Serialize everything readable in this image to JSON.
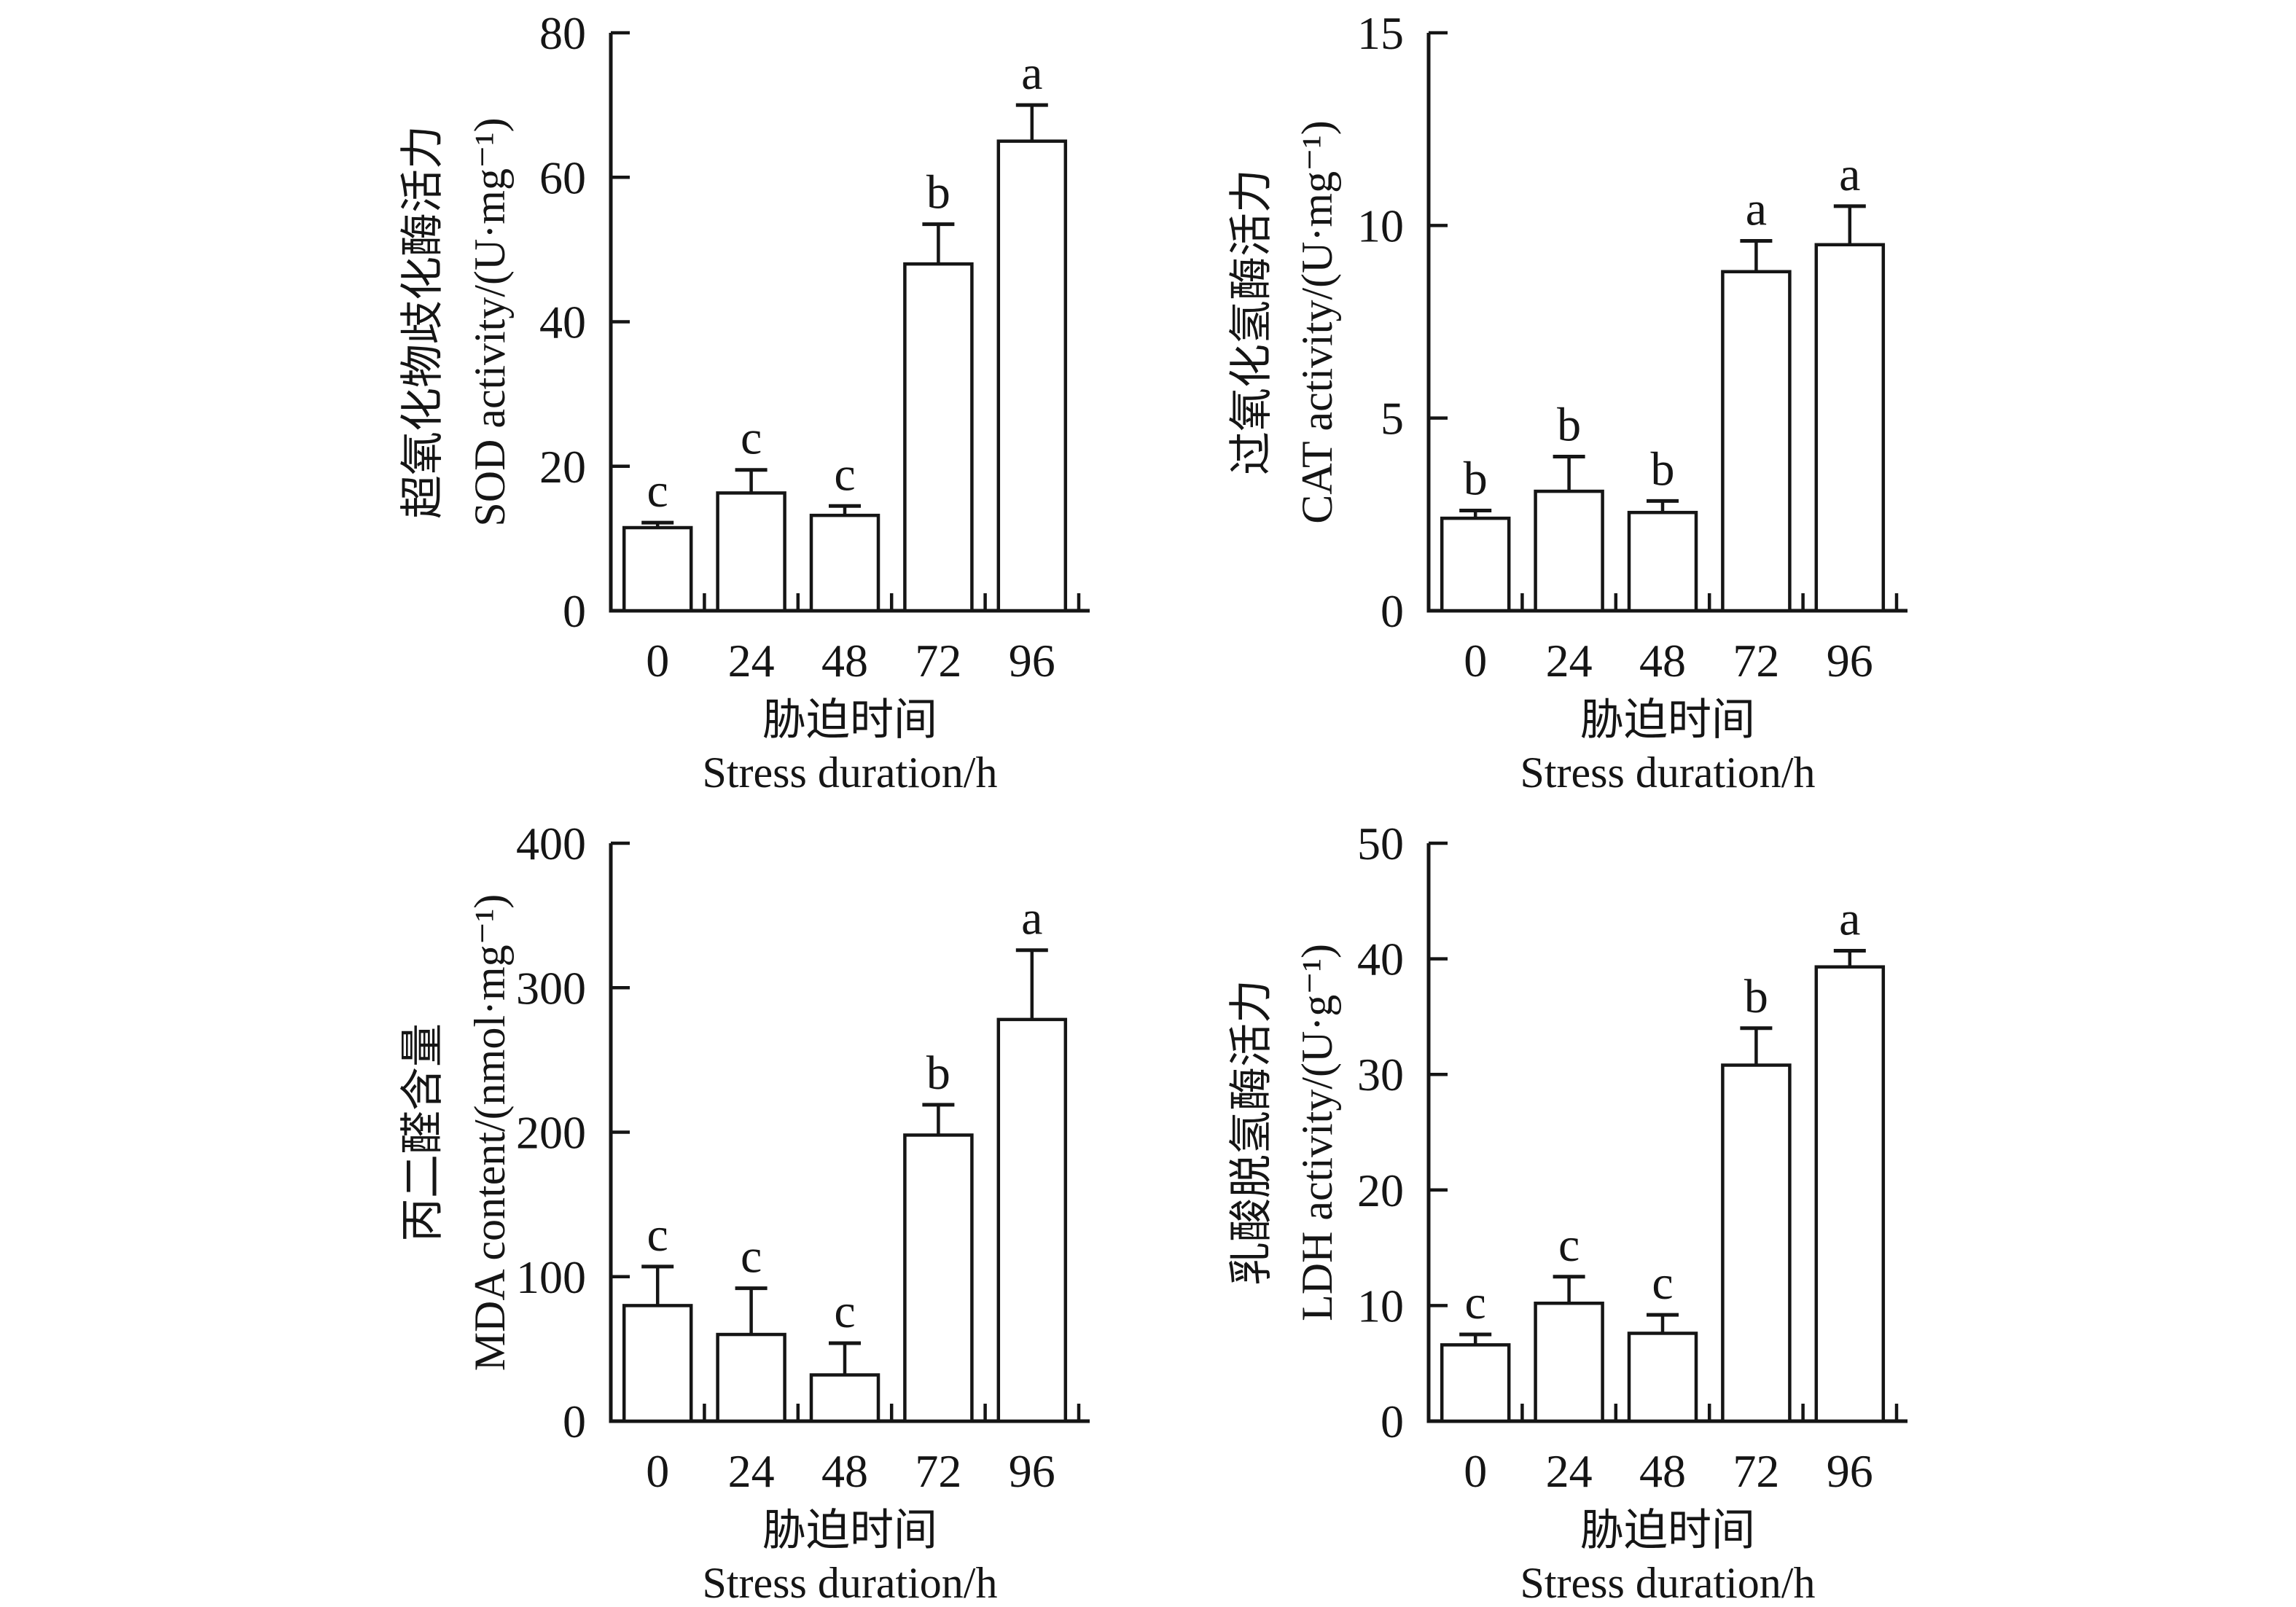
{
  "figure": {
    "background": "#ffffff",
    "ink_color": "#151515",
    "bar_fill": "#ffffff",
    "x_categories": [
      "0",
      "24",
      "48",
      "72",
      "96"
    ],
    "xlabel_zh": "胁迫时间",
    "xlabel_en": "Stress duration/h"
  },
  "chart_data": [
    {
      "type": "bar",
      "panel": "top-left",
      "ylabel_zh": "超氧化物歧化酶活力",
      "ylabel_en": "SOD activity/(U·mg⁻¹)",
      "xlabel_zh": "胁迫时间",
      "xlabel_en": "Stress duration/h",
      "categories": [
        "0",
        "24",
        "48",
        "72",
        "96"
      ],
      "values": [
        11.5,
        16.3,
        13.2,
        48,
        65
      ],
      "errors": [
        0.7,
        3.2,
        1.3,
        5.5,
        5
      ],
      "sig_letters": [
        "c",
        "c",
        "c",
        "b",
        "a"
      ],
      "ylim": [
        0,
        80
      ],
      "yticks": [
        0,
        20,
        40,
        60,
        80
      ],
      "grid": false,
      "legend": "none"
    },
    {
      "type": "bar",
      "panel": "top-right",
      "ylabel_zh": "过氧化氢酶活力",
      "ylabel_en": "CAT activity/(U·mg⁻¹)",
      "xlabel_zh": "胁迫时间",
      "xlabel_en": "Stress duration/h",
      "categories": [
        "0",
        "24",
        "48",
        "72",
        "96"
      ],
      "values": [
        2.4,
        3.1,
        2.55,
        8.8,
        9.5
      ],
      "errors": [
        0.2,
        0.9,
        0.3,
        0.8,
        1.0
      ],
      "sig_letters": [
        "b",
        "b",
        "b",
        "a",
        "a"
      ],
      "ylim": [
        0,
        15
      ],
      "yticks": [
        0,
        5,
        10,
        15
      ],
      "grid": false,
      "legend": "none"
    },
    {
      "type": "bar",
      "panel": "bottom-left",
      "ylabel_zh": "丙二醛含量",
      "ylabel_en": "MDA content/(nmol·mg⁻¹)",
      "xlabel_zh": "胁迫时间",
      "xlabel_en": "Stress duration/h",
      "categories": [
        "0",
        "24",
        "48",
        "72",
        "96"
      ],
      "values": [
        80,
        60,
        32,
        198,
        278
      ],
      "errors": [
        27,
        32,
        22,
        21,
        48
      ],
      "sig_letters": [
        "c",
        "c",
        "c",
        "b",
        "a"
      ],
      "ylim": [
        0,
        400
      ],
      "yticks": [
        0,
        100,
        200,
        300,
        400
      ],
      "grid": false,
      "legend": "none"
    },
    {
      "type": "bar",
      "panel": "bottom-right",
      "ylabel_zh": "乳酸脱氢酶活力",
      "ylabel_en": "LDH activity/(U·g⁻¹)",
      "xlabel_zh": "胁迫时间",
      "xlabel_en": "Stress duration/h",
      "categories": [
        "0",
        "24",
        "48",
        "72",
        "96"
      ],
      "values": [
        6.6,
        10.2,
        7.6,
        30.8,
        39.3
      ],
      "errors": [
        0.9,
        2.3,
        1.6,
        3.2,
        1.4
      ],
      "sig_letters": [
        "c",
        "c",
        "c",
        "b",
        "a"
      ],
      "ylim": [
        0,
        50
      ],
      "yticks": [
        0,
        10,
        20,
        30,
        40,
        50
      ],
      "grid": false,
      "legend": "none"
    }
  ]
}
